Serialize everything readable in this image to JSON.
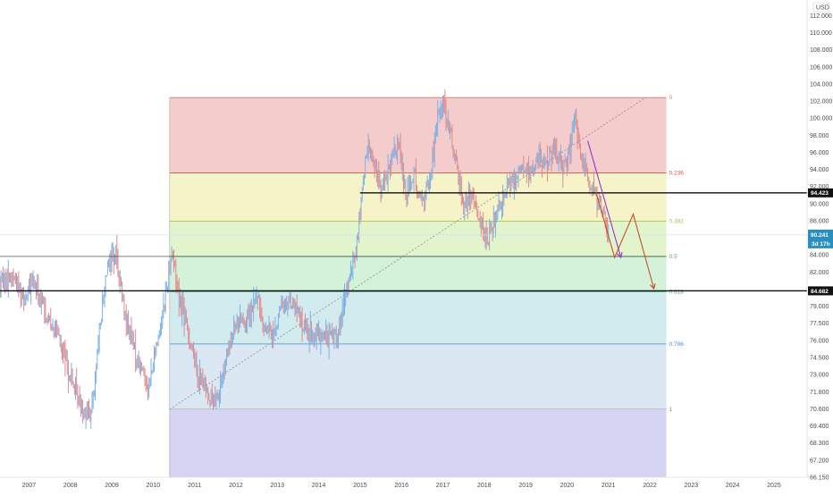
{
  "chart_data": {
    "type": "line",
    "currency": "USD",
    "price_axis": {
      "labels": [
        "112.000",
        "110.000",
        "108.000",
        "106.000",
        "104.000",
        "102.000",
        "100.000",
        "98.000",
        "96.000",
        "94.000",
        "92.000",
        "90.000",
        "88.000",
        "86.000",
        "84.000",
        "82.000",
        "80.500",
        "79.000",
        "77.500",
        "76.000",
        "74.500",
        "73.000",
        "71.800",
        "70.600",
        "69.400",
        "68.300",
        "67.200",
        "66.150"
      ],
      "ylim": [
        66.15,
        113.6
      ]
    },
    "time_axis": {
      "labels": [
        "2007",
        "2008",
        "2009",
        "2010",
        "2011",
        "2012",
        "2013",
        "2014",
        "2015",
        "2016",
        "2017",
        "2018",
        "2019",
        "2020",
        "2021",
        "2022",
        "2023",
        "2024",
        "2025"
      ],
      "xlim": [
        2006.3,
        2025.8
      ]
    },
    "horizontal_levels": [
      {
        "price": 94.423,
        "label": "94.423",
        "style": "black",
        "from_year": 2015.0
      },
      {
        "price": 88.1,
        "label": "",
        "style": "thin",
        "from_year": 2006.3
      },
      {
        "price": 84.682,
        "label": "84.682",
        "style": "black",
        "from_year": 2006.3
      }
    ],
    "current_price": {
      "price": "90.241",
      "countdown": "3d 17h",
      "value": 90.241
    },
    "fibonacci": {
      "x_start": 2010.4,
      "x_end": 2022.4,
      "bands": [
        {
          "ratio": "0",
          "price": 103.9,
          "color": "#f4cccc",
          "line": "#c47878"
        },
        {
          "ratio": "0.236",
          "price": 96.4,
          "color": "#f7f3c9",
          "line": "#d4553e"
        },
        {
          "ratio": "0.382",
          "price": 91.6,
          "color": "#e2f4cc",
          "line": "#a3c450"
        },
        {
          "ratio": "0.5",
          "price": 88.1,
          "color": "#d4f1d9",
          "line": "#55b36d"
        },
        {
          "ratio": "0.618",
          "price": 84.6,
          "color": "#d2ebef",
          "line": "#47a67e"
        },
        {
          "ratio": "0.786",
          "price": 79.4,
          "color": "#dbe7f3",
          "line": "#4a8cc8"
        },
        {
          "ratio": "1",
          "price": 72.9,
          "color": "#e6e6e6",
          "line": "#8a8a8a"
        }
      ],
      "below_color": "#d5d4f3",
      "below_floor": 66.15
    },
    "trendline": {
      "from": [
        2010.4,
        72.9
      ],
      "to": [
        2021.9,
        103.9
      ],
      "style": "dotted"
    },
    "projections": [
      {
        "color": "#9b30d9",
        "points": [
          [
            2020.5,
            99.6
          ],
          [
            2021.3,
            88.0
          ]
        ]
      },
      {
        "color": "#c4502c",
        "points": [
          [
            2020.7,
            94.5
          ],
          [
            2021.15,
            88.0
          ],
          [
            2021.6,
            92.3
          ],
          [
            2022.1,
            84.9
          ]
        ]
      }
    ],
    "price_series": {
      "years": [
        2006.3,
        2006.6,
        2006.9,
        2007.1,
        2007.4,
        2007.7,
        2008.0,
        2008.3,
        2008.5,
        2008.7,
        2008.9,
        2009.1,
        2009.3,
        2009.6,
        2009.9,
        2010.1,
        2010.3,
        2010.45,
        2010.6,
        2010.9,
        2011.1,
        2011.3,
        2011.5,
        2011.7,
        2011.9,
        2012.1,
        2012.3,
        2012.5,
        2012.7,
        2012.9,
        2013.1,
        2013.3,
        2013.5,
        2013.7,
        2013.9,
        2014.1,
        2014.3,
        2014.5,
        2014.7,
        2014.9,
        2015.05,
        2015.2,
        2015.35,
        2015.5,
        2015.7,
        2015.9,
        2016.1,
        2016.3,
        2016.5,
        2016.7,
        2016.9,
        2017.0,
        2017.15,
        2017.3,
        2017.5,
        2017.7,
        2017.9,
        2018.05,
        2018.15,
        2018.3,
        2018.5,
        2018.7,
        2018.9,
        2019.1,
        2019.3,
        2019.5,
        2019.7,
        2019.9,
        2020.1,
        2020.2,
        2020.3,
        2020.5,
        2020.7,
        2020.9,
        2021.0
      ],
      "values": [
        85.5,
        86.2,
        84.0,
        85.6,
        82.5,
        80.2,
        76.0,
        73.0,
        72.4,
        80.5,
        87.8,
        88.5,
        82.6,
        78.0,
        75.2,
        79.6,
        84.2,
        88.8,
        84.6,
        79.6,
        76.2,
        74.8,
        73.4,
        76.4,
        80.1,
        82.2,
        81.5,
        84.3,
        81.0,
        80.2,
        83.0,
        83.8,
        82.5,
        80.5,
        80.4,
        80.2,
        80.1,
        81.0,
        85.0,
        88.6,
        94.5,
        99.6,
        97.0,
        95.0,
        96.7,
        99.5,
        94.8,
        96.2,
        93.4,
        96.0,
        102.8,
        103.6,
        100.5,
        98.0,
        93.2,
        93.8,
        92.0,
        89.8,
        90.2,
        92.6,
        94.9,
        95.8,
        97.0,
        96.2,
        97.9,
        97.6,
        98.4,
        96.9,
        99.0,
        102.7,
        98.5,
        96.0,
        93.9,
        92.5,
        90.1
      ],
      "colors": {
        "up": "#7db1e6",
        "down": "#e08a8a"
      }
    }
  }
}
